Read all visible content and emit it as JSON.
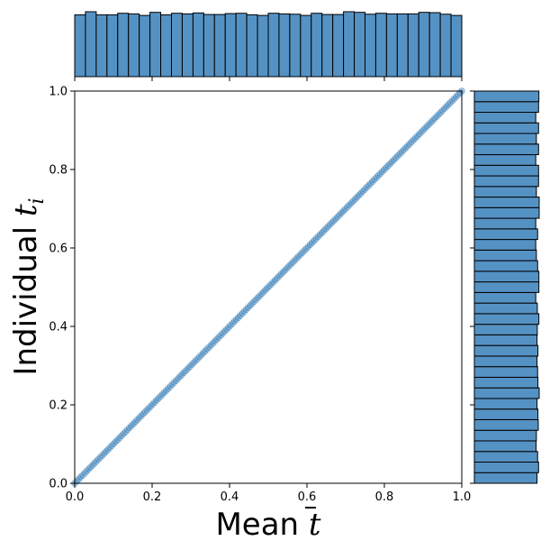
{
  "chart_data": {
    "type": "scatter",
    "subtype": "joint-plot-with-marginal-histograms",
    "xlabel": "Mean t̄",
    "ylabel": "Individual t_i",
    "xlim": [
      0,
      1
    ],
    "ylim": [
      0,
      1
    ],
    "xticks": [
      "0.0",
      "0.2",
      "0.4",
      "0.6",
      "0.8",
      "1.0"
    ],
    "yticks": [
      "0.0",
      "0.2",
      "0.4",
      "0.6",
      "0.8",
      "1.0"
    ],
    "grid": false,
    "color": "#3a7fb8",
    "hist_fill": "#5592c4",
    "scatter": {
      "n_points": 200,
      "x_start": 0.0,
      "x_end": 1.0,
      "relation": "y = x"
    },
    "marginal_x_counts": [
      20,
      21,
      20,
      20,
      20.5,
      20.3,
      19.8,
      20.8,
      20,
      20.5,
      20.3,
      20.6,
      20.1,
      20.1,
      20.4,
      20.5,
      20,
      19.8,
      20.5,
      20.3,
      20.2,
      19.8,
      20.5,
      20.1,
      20.1,
      21,
      20.8,
      20.2,
      20.5,
      20.3,
      20.3,
      20.3,
      20.8,
      20.7,
      20.2,
      19.8
    ],
    "marginal_y_counts": [
      20,
      20.5,
      20.2,
      19.7,
      19.8,
      20.4,
      20.3,
      20,
      20.7,
      20.3,
      20.2,
      20,
      20.3,
      20,
      20.1,
      20.6,
      20.1,
      19.6,
      20.6,
      20.6,
      20.2,
      19.8,
      19.6,
      20.2,
      19.6,
      20.7,
      20.7,
      19.8,
      20.5,
      20.5,
      19.6,
      20.5,
      19.8,
      20.5,
      19.6,
      20.5,
      20.6
    ]
  }
}
